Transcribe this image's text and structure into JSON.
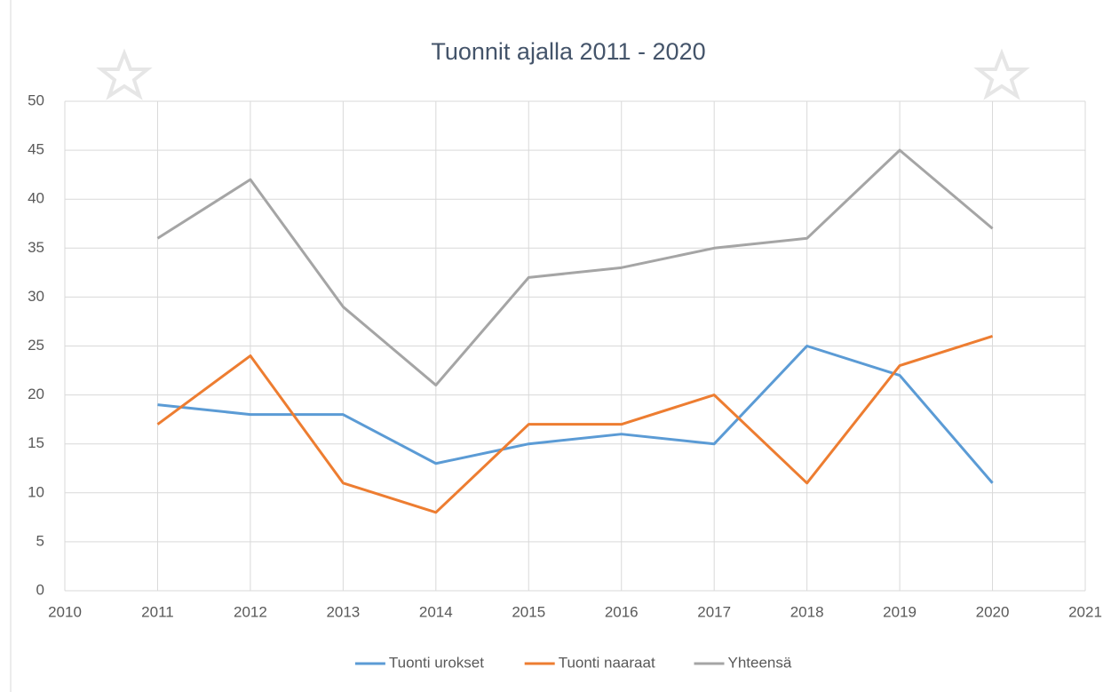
{
  "chart_data": {
    "type": "line",
    "title": "Tuonnit ajalla 2011 - 2020",
    "x": [
      2011,
      2012,
      2013,
      2014,
      2015,
      2016,
      2017,
      2018,
      2019,
      2020
    ],
    "series": [
      {
        "name": "Tuonti urokset",
        "color": "#5b9bd5",
        "values": [
          19,
          18,
          18,
          13,
          15,
          16,
          15,
          25,
          22,
          11
        ]
      },
      {
        "name": "Tuonti naaraat",
        "color": "#ed7d31",
        "values": [
          17,
          24,
          11,
          8,
          17,
          17,
          20,
          11,
          23,
          26
        ]
      },
      {
        "name": "Yhteensä",
        "color": "#a5a5a5",
        "values": [
          36,
          42,
          29,
          21,
          32,
          33,
          35,
          36,
          45,
          37
        ]
      }
    ],
    "xlim": [
      2010,
      2021
    ],
    "xticks": [
      2010,
      2011,
      2012,
      2013,
      2014,
      2015,
      2016,
      2017,
      2018,
      2019,
      2020,
      2021
    ],
    "ylim": [
      0,
      50
    ],
    "yticks": [
      0,
      5,
      10,
      15,
      20,
      25,
      30,
      35,
      40,
      45,
      50
    ],
    "grid": true,
    "legend": "bottom"
  }
}
